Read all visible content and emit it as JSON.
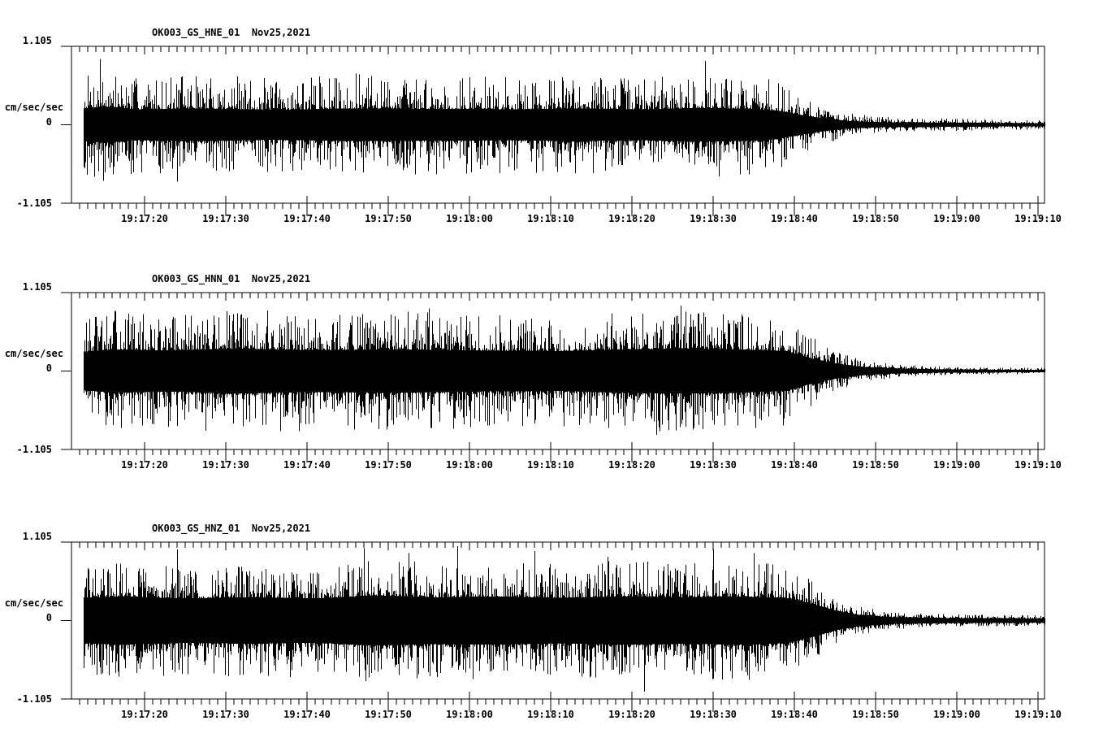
{
  "page": {
    "background": "#ffffff",
    "ink": "#000000"
  },
  "time_axis": {
    "start_time": "19:17:11",
    "span_s": 119.8,
    "minor_step_s": 1,
    "tick_t": [
      9,
      19,
      29,
      39,
      49,
      59,
      69,
      79,
      89,
      99,
      109,
      119
    ]
  },
  "chart_data": [
    {
      "type": "line",
      "title": "OK003_GS_HNE_01  Nov25,2021",
      "ylabel": "cm/sec/sec",
      "ylim": [
        -1.105,
        1.105
      ],
      "yticks": [
        1.105,
        0,
        -1.105
      ],
      "ytick_labels": [
        "1.105",
        "0",
        "-1.105"
      ],
      "xtick_labels": [
        "19:17:20",
        "19:17:30",
        "19:17:40",
        "19:17:50",
        "19:18:00",
        "19:18:10",
        "19:18:20",
        "19:18:30",
        "19:18:40",
        "19:18:50",
        "19:19:00",
        "19:19:10"
      ],
      "signal_onset": "19:17:12",
      "envelope": [
        [
          1.5,
          0.72
        ],
        [
          4,
          0.8
        ],
        [
          8,
          0.68
        ],
        [
          15,
          0.72
        ],
        [
          25,
          0.66
        ],
        [
          35,
          0.72
        ],
        [
          45,
          0.7
        ],
        [
          55,
          0.68
        ],
        [
          62,
          0.72
        ],
        [
          70,
          0.68
        ],
        [
          78,
          0.74
        ],
        [
          84,
          0.7
        ],
        [
          87,
          0.62
        ],
        [
          90,
          0.42
        ],
        [
          93,
          0.26
        ],
        [
          96,
          0.16
        ],
        [
          100,
          0.11
        ],
        [
          108,
          0.09
        ],
        [
          119.8,
          0.07
        ]
      ],
      "core_ratio": 0.32,
      "seed": 7,
      "spikes": [
        {
          "t": 3.5,
          "v": 0.93
        },
        {
          "t": 3.9,
          "v": -0.78
        },
        {
          "t": 13,
          "v": -0.8
        },
        {
          "t": 78,
          "v": 0.9
        }
      ]
    },
    {
      "type": "line",
      "title": "OK003_GS_HNN_01  Nov25,2021",
      "ylabel": "cm/sec/sec",
      "ylim": [
        -1.105,
        1.105
      ],
      "yticks": [
        1.105,
        0,
        -1.105
      ],
      "ytick_labels": [
        "1.105",
        "0",
        "-1.105"
      ],
      "xtick_labels": [
        "19:17:20",
        "19:17:30",
        "19:17:40",
        "19:17:50",
        "19:18:00",
        "19:18:10",
        "19:18:20",
        "19:18:30",
        "19:18:40",
        "19:18:50",
        "19:19:00",
        "19:19:10"
      ],
      "signal_onset": "19:17:12",
      "envelope": [
        [
          1.5,
          0.75
        ],
        [
          5,
          0.85
        ],
        [
          12,
          0.8
        ],
        [
          20,
          0.88
        ],
        [
          30,
          0.82
        ],
        [
          40,
          0.85
        ],
        [
          50,
          0.8
        ],
        [
          60,
          0.78
        ],
        [
          68,
          0.85
        ],
        [
          75,
          0.88
        ],
        [
          82,
          0.85
        ],
        [
          88,
          0.78
        ],
        [
          91,
          0.5
        ],
        [
          94,
          0.3
        ],
        [
          97,
          0.17
        ],
        [
          101,
          0.1
        ],
        [
          108,
          0.06
        ],
        [
          119.8,
          0.045
        ]
      ],
      "core_ratio": 0.36,
      "seed": 13,
      "spikes": [
        {
          "t": 28,
          "v": -0.85
        },
        {
          "t": 44,
          "v": 0.88
        },
        {
          "t": 72,
          "v": -0.9
        },
        {
          "t": 75,
          "v": 0.92
        }
      ]
    },
    {
      "type": "line",
      "title": "OK003_GS_HNZ_01  Nov25,2021",
      "ylabel": "cm/sec/sec",
      "ylim": [
        -1.105,
        1.105
      ],
      "yticks": [
        1.105,
        0,
        -1.105
      ],
      "ytick_labels": [
        "1.105",
        "0",
        "-1.105"
      ],
      "xtick_labels": [
        "19:17:20",
        "19:17:30",
        "19:17:40",
        "19:17:50",
        "19:18:00",
        "19:18:10",
        "19:18:20",
        "19:18:30",
        "19:18:40",
        "19:18:50",
        "19:19:00",
        "19:19:10"
      ],
      "signal_onset": "19:17:12",
      "envelope": [
        [
          1.5,
          0.8
        ],
        [
          6,
          0.85
        ],
        [
          14,
          0.78
        ],
        [
          22,
          0.82
        ],
        [
          30,
          0.78
        ],
        [
          37,
          0.88
        ],
        [
          45,
          0.82
        ],
        [
          52,
          0.85
        ],
        [
          60,
          0.8
        ],
        [
          68,
          0.85
        ],
        [
          75,
          0.82
        ],
        [
          82,
          0.85
        ],
        [
          88,
          0.8
        ],
        [
          91,
          0.6
        ],
        [
          94,
          0.35
        ],
        [
          97,
          0.2
        ],
        [
          101,
          0.12
        ],
        [
          108,
          0.09
        ],
        [
          119.8,
          0.075
        ]
      ],
      "core_ratio": 0.4,
      "seed": 29,
      "spikes": [
        {
          "t": 13,
          "v": 1.0
        },
        {
          "t": 36,
          "v": 1.02
        },
        {
          "t": 36.6,
          "v": -0.8
        },
        {
          "t": 41.5,
          "v": 0.95
        },
        {
          "t": 47.5,
          "v": 1.05
        },
        {
          "t": 57,
          "v": 0.98
        },
        {
          "t": 66,
          "v": 0.9
        },
        {
          "t": 70.5,
          "v": -1.0
        },
        {
          "t": 79,
          "v": 1.0
        },
        {
          "t": 84,
          "v": 0.95
        }
      ]
    }
  ]
}
